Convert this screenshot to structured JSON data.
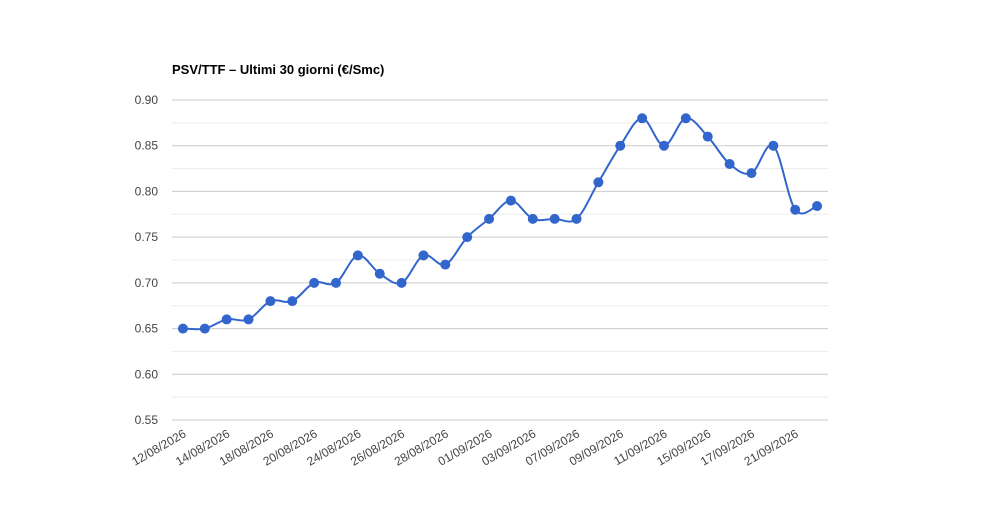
{
  "chart_data": {
    "type": "line",
    "title": "PSV/TTF – Ultimi 30 giorni (€/Smc)",
    "categories": [
      "12/08/2026",
      null,
      "14/08/2026",
      null,
      "18/08/2026",
      null,
      "20/08/2026",
      null,
      "24/08/2026",
      null,
      "26/08/2026",
      null,
      "28/08/2026",
      null,
      "01/09/2026",
      null,
      "03/09/2026",
      null,
      "07/09/2026",
      null,
      "09/09/2026",
      null,
      "11/09/2026",
      null,
      "15/09/2026",
      null,
      "17/09/2026",
      null,
      "21/09/2026",
      null
    ],
    "series": [
      {
        "name": "PSV/TTF",
        "color": "#3366cc",
        "values": [
          0.65,
          0.65,
          0.66,
          0.66,
          0.68,
          0.68,
          0.7,
          0.7,
          0.73,
          0.71,
          0.7,
          0.73,
          0.72,
          0.75,
          0.77,
          0.79,
          0.77,
          0.77,
          0.77,
          0.81,
          0.85,
          0.88,
          0.85,
          0.88,
          0.86,
          0.83,
          0.82,
          0.85,
          0.78,
          0.784
        ]
      }
    ],
    "ylim": [
      0.55,
      0.9
    ],
    "yticks": [
      0.55,
      {
        "value": 0.6,
        "label": "0.60"
      },
      0.65,
      {
        "value": 0.7,
        "label": "0.70"
      },
      0.75,
      {
        "value": 0.8,
        "label": "0.80"
      },
      0.85,
      {
        "value": 0.9,
        "label": "0.90"
      }
    ],
    "grid": true
  }
}
